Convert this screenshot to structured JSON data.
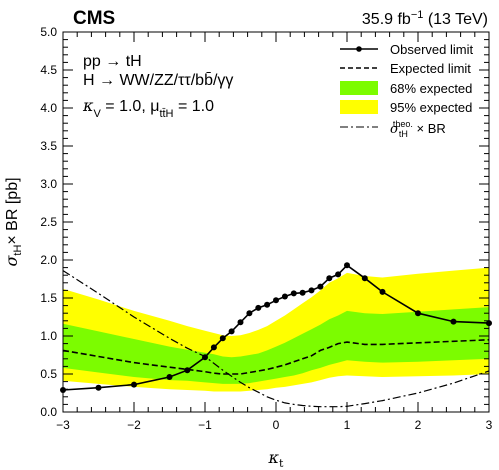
{
  "header": {
    "experiment": "CMS",
    "luminosity": "35.9 fb",
    "luminosity_exp": "−1",
    "energy": " (13 TeV)"
  },
  "annotations": {
    "process": "pp → tH",
    "decays": "H → WW/ZZ/ττ/bb̄/γγ",
    "params_kv": "κ",
    "params_kv_sub": "V",
    "params_kv_val": " = 1.0, μ",
    "params_mu_sub": "tt̄H",
    "params_mu_val": " = 1.0"
  },
  "axes": {
    "xlabel": "κ",
    "xlabel_sub": "t",
    "ylabel": "σ",
    "ylabel_sub": "tH",
    "ylabel_rest": "× BR [pb]"
  },
  "legend": {
    "observed": "Observed limit",
    "expected": "Expected limit",
    "band68": "68% expected",
    "band95": "95% expected",
    "theory_sigma": "σ",
    "theory_sub": "tH",
    "theory_sup": "theo.",
    "theory_rest": " × BR"
  },
  "colors": {
    "band68": "#7CFC00",
    "band95": "#FFFF00",
    "observed": "#000000",
    "expected": "#000000",
    "theory": "#000000"
  },
  "chart_data": {
    "type": "line",
    "title": "",
    "xlabel": "κt",
    "ylabel": "σtH × BR [pb]",
    "xlim": [
      -3,
      3
    ],
    "ylim": [
      0,
      5
    ],
    "xticks": [
      -3,
      -2,
      -1,
      0,
      1,
      2,
      3
    ],
    "yticks": [
      0.0,
      0.5,
      1.0,
      1.5,
      2.0,
      2.5,
      3.0,
      3.5,
      4.0,
      4.5,
      5.0
    ],
    "x": [
      -3,
      -2.5,
      -2,
      -1.5,
      -1.25,
      -1,
      -0.875,
      -0.75,
      -0.625,
      -0.5,
      -0.375,
      -0.25,
      -0.125,
      0,
      0.125,
      0.25,
      0.375,
      0.5,
      0.625,
      0.75,
      0.875,
      1,
      1.25,
      1.5,
      2,
      2.5,
      3
    ],
    "series": [
      {
        "name": "Observed limit",
        "values": [
          0.29,
          0.32,
          0.36,
          0.46,
          0.55,
          0.72,
          0.85,
          0.97,
          1.06,
          1.18,
          1.3,
          1.37,
          1.41,
          1.47,
          1.52,
          1.56,
          1.57,
          1.6,
          1.65,
          1.76,
          1.81,
          1.93,
          1.76,
          1.58,
          1.3,
          1.19,
          1.17
        ]
      },
      {
        "name": "Expected limit",
        "values": [
          0.81,
          0.73,
          0.65,
          0.59,
          0.56,
          0.53,
          0.51,
          0.5,
          0.5,
          0.5,
          0.52,
          0.54,
          0.56,
          0.59,
          0.62,
          0.66,
          0.7,
          0.74,
          0.81,
          0.85,
          0.9,
          0.92,
          0.89,
          0.89,
          0.91,
          0.93,
          0.95
        ]
      },
      {
        "name": "68% expected",
        "low": [
          0.58,
          0.52,
          0.46,
          0.42,
          0.41,
          0.39,
          0.38,
          0.37,
          0.37,
          0.37,
          0.38,
          0.4,
          0.42,
          0.44,
          0.46,
          0.48,
          0.51,
          0.55,
          0.58,
          0.62,
          0.65,
          0.68,
          0.66,
          0.65,
          0.66,
          0.68,
          0.7
        ],
        "high": [
          1.16,
          1.06,
          0.96,
          0.86,
          0.82,
          0.78,
          0.76,
          0.73,
          0.72,
          0.73,
          0.75,
          0.77,
          0.81,
          0.86,
          0.91,
          0.97,
          1.03,
          1.09,
          1.15,
          1.22,
          1.27,
          1.33,
          1.3,
          1.29,
          1.32,
          1.35,
          1.38
        ]
      },
      {
        "name": "95% expected",
        "low": [
          0.41,
          0.37,
          0.33,
          0.3,
          0.29,
          0.28,
          0.27,
          0.27,
          0.27,
          0.27,
          0.28,
          0.29,
          0.3,
          0.32,
          0.33,
          0.35,
          0.37,
          0.39,
          0.42,
          0.45,
          0.47,
          0.48,
          0.47,
          0.46,
          0.47,
          0.48,
          0.5
        ],
        "high": [
          1.62,
          1.48,
          1.33,
          1.2,
          1.13,
          1.07,
          1.04,
          1.01,
          1.0,
          1.01,
          1.04,
          1.08,
          1.13,
          1.2,
          1.27,
          1.35,
          1.43,
          1.51,
          1.6,
          1.7,
          1.76,
          1.83,
          1.79,
          1.77,
          1.82,
          1.86,
          1.9
        ]
      },
      {
        "name": "σtH theo. × BR",
        "values": [
          1.86,
          1.56,
          1.25,
          0.97,
          0.84,
          0.73,
          0.64,
          0.55,
          0.47,
          0.39,
          0.32,
          0.26,
          0.2,
          0.155,
          0.12,
          0.1,
          0.085,
          0.075,
          0.07,
          0.07,
          0.07,
          0.075,
          0.11,
          0.15,
          0.25,
          0.38,
          0.54
        ]
      }
    ],
    "legend_position": "top-right",
    "grid": false
  }
}
